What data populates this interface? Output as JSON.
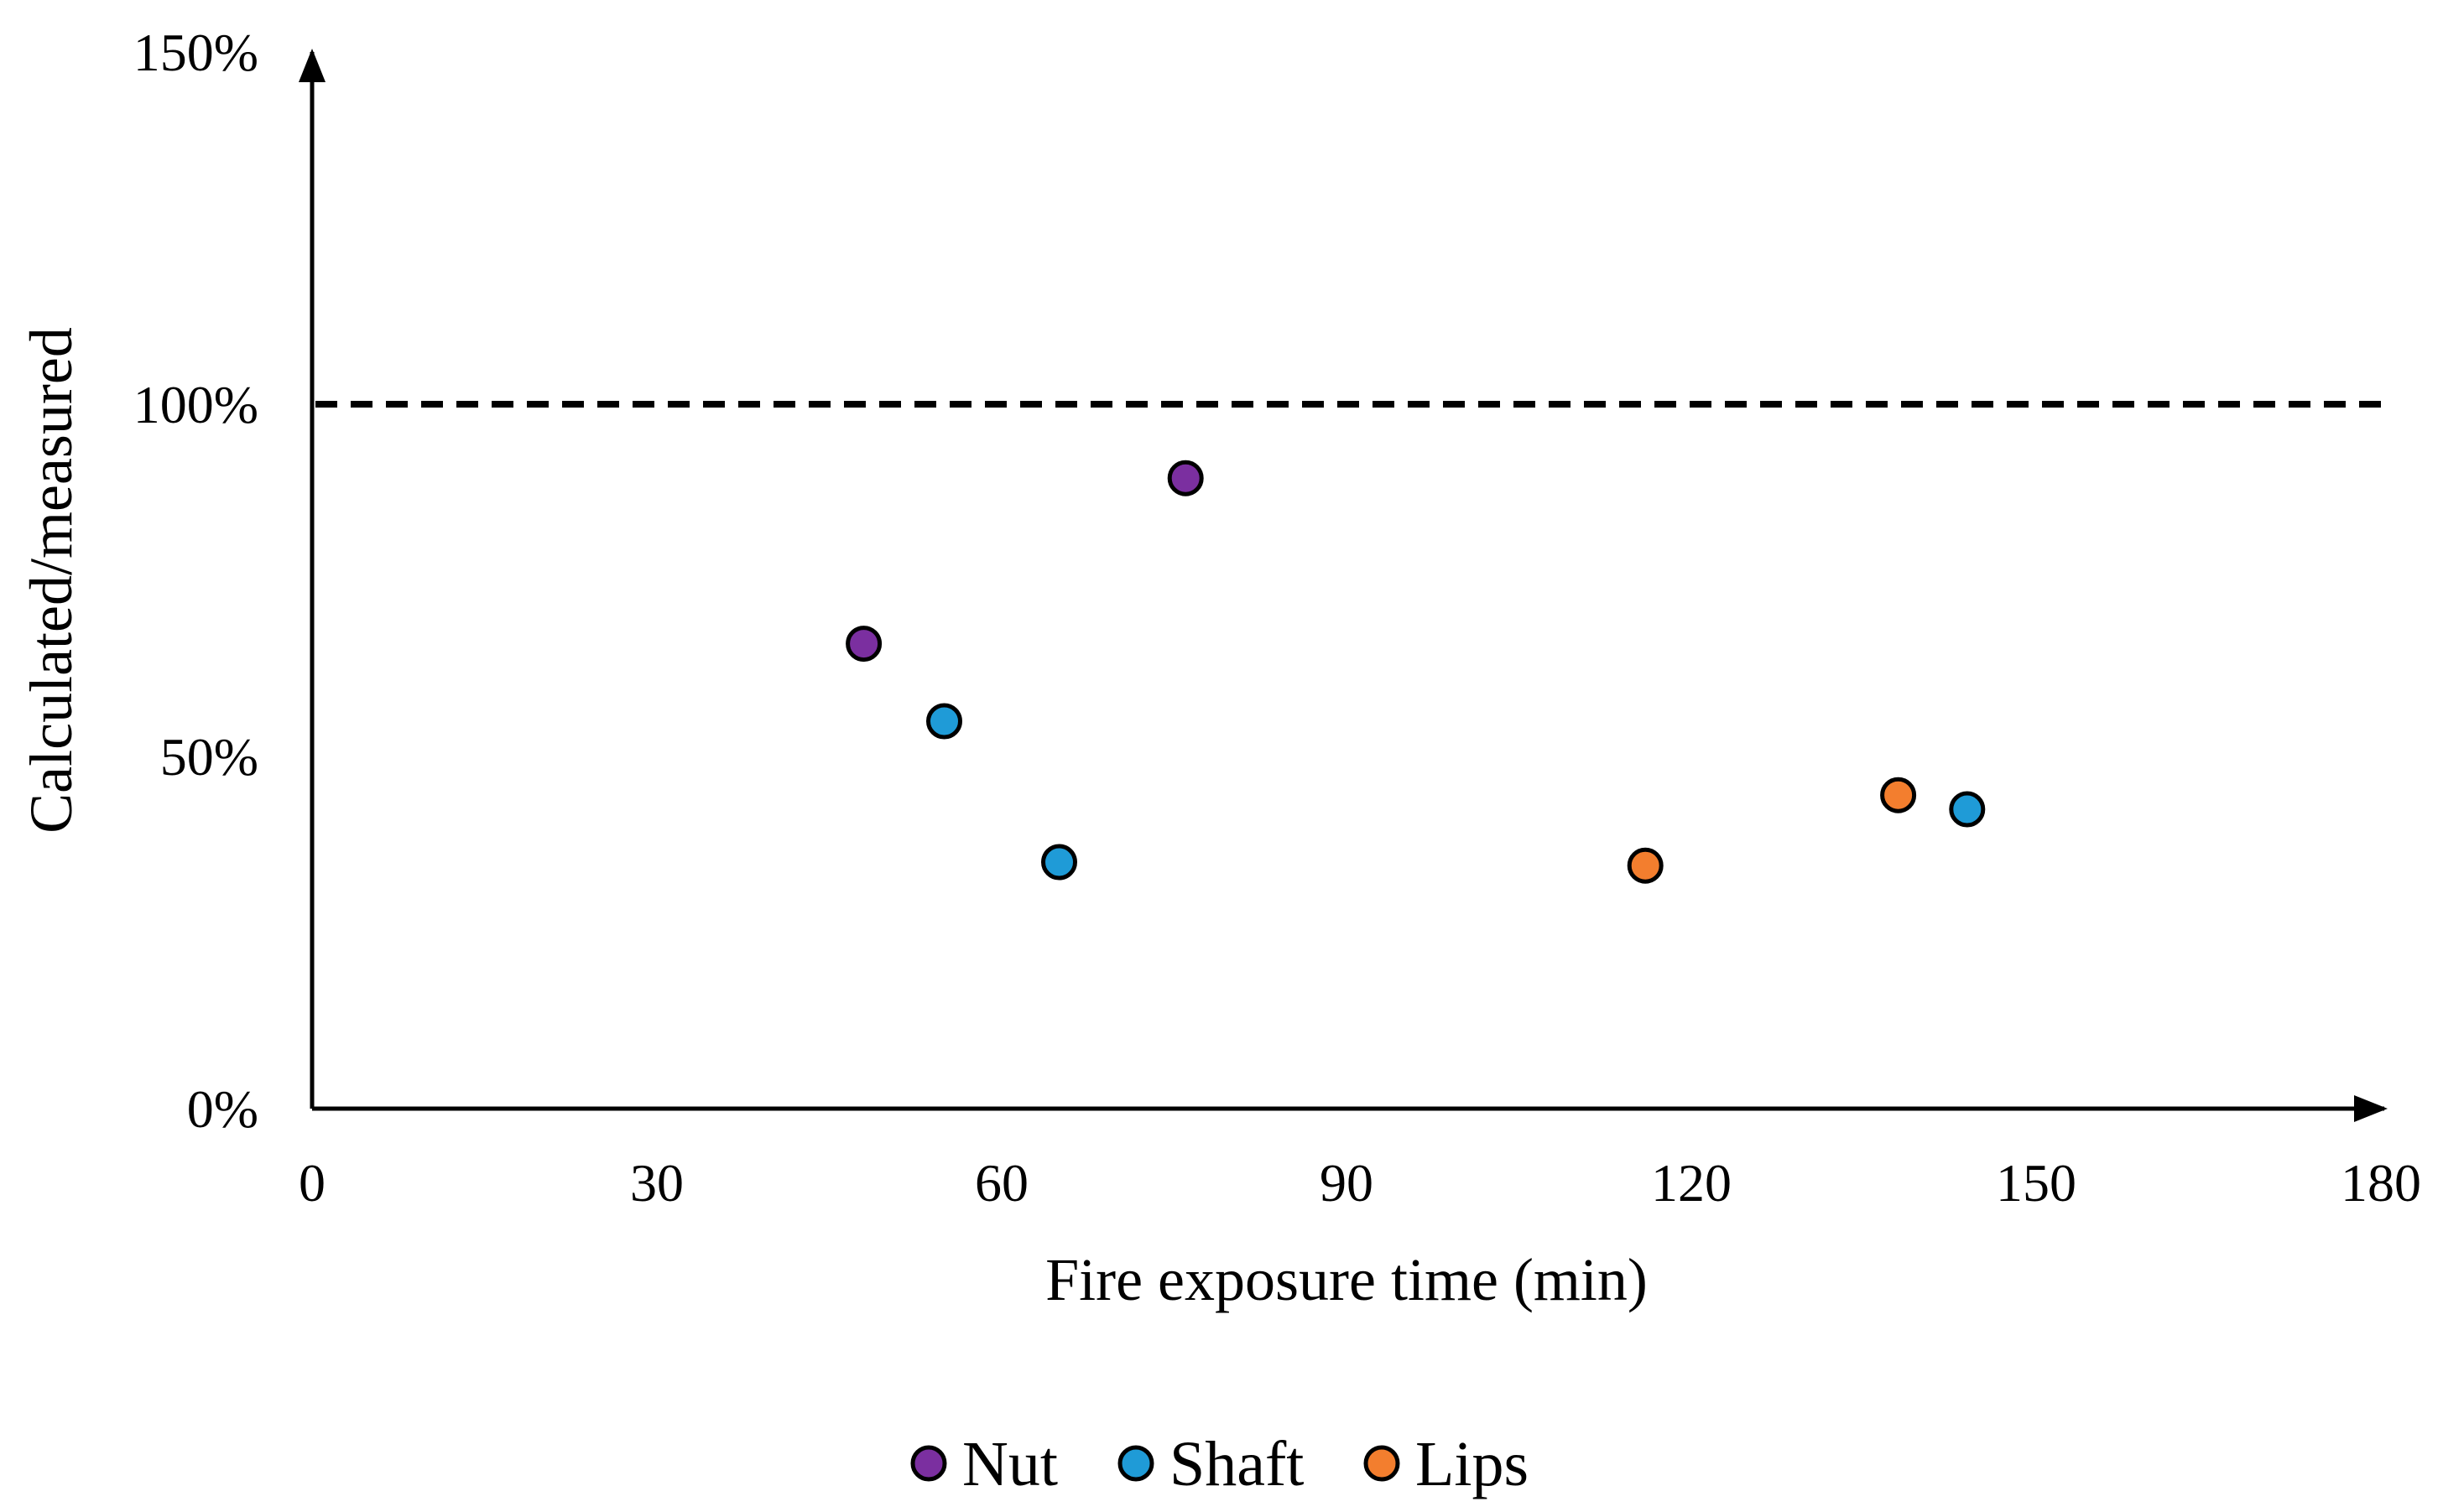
{
  "chart_data": {
    "type": "scatter",
    "title": "",
    "xlabel": "Fire exposure time (min)",
    "ylabel": "Calculated/measured",
    "xlim": [
      0,
      180
    ],
    "ylim": [
      0,
      150
    ],
    "x_ticks": [
      0,
      30,
      60,
      90,
      120,
      150,
      180
    ],
    "x_tick_labels": [
      "0",
      "30",
      "60",
      "90",
      "120",
      "150",
      "180"
    ],
    "y_ticks": [
      0,
      50,
      100,
      150
    ],
    "y_tick_labels": [
      "0%",
      "50%",
      "100%",
      "150%"
    ],
    "grid": false,
    "legend_position": "bottom",
    "reference_line": {
      "y": 100,
      "style": "dashed"
    },
    "series": [
      {
        "name": "Nut",
        "color": "#7B2FA0",
        "points": [
          {
            "x": 48,
            "y": 66
          },
          {
            "x": 76,
            "y": 89.5
          }
        ]
      },
      {
        "name": "Shaft",
        "color": "#1F9BD7",
        "points": [
          {
            "x": 55,
            "y": 55
          },
          {
            "x": 65,
            "y": 35
          },
          {
            "x": 144,
            "y": 42.5
          }
        ]
      },
      {
        "name": "Lips",
        "color": "#F37E2E",
        "points": [
          {
            "x": 116,
            "y": 34.5
          },
          {
            "x": 138,
            "y": 44.5
          }
        ]
      }
    ]
  }
}
